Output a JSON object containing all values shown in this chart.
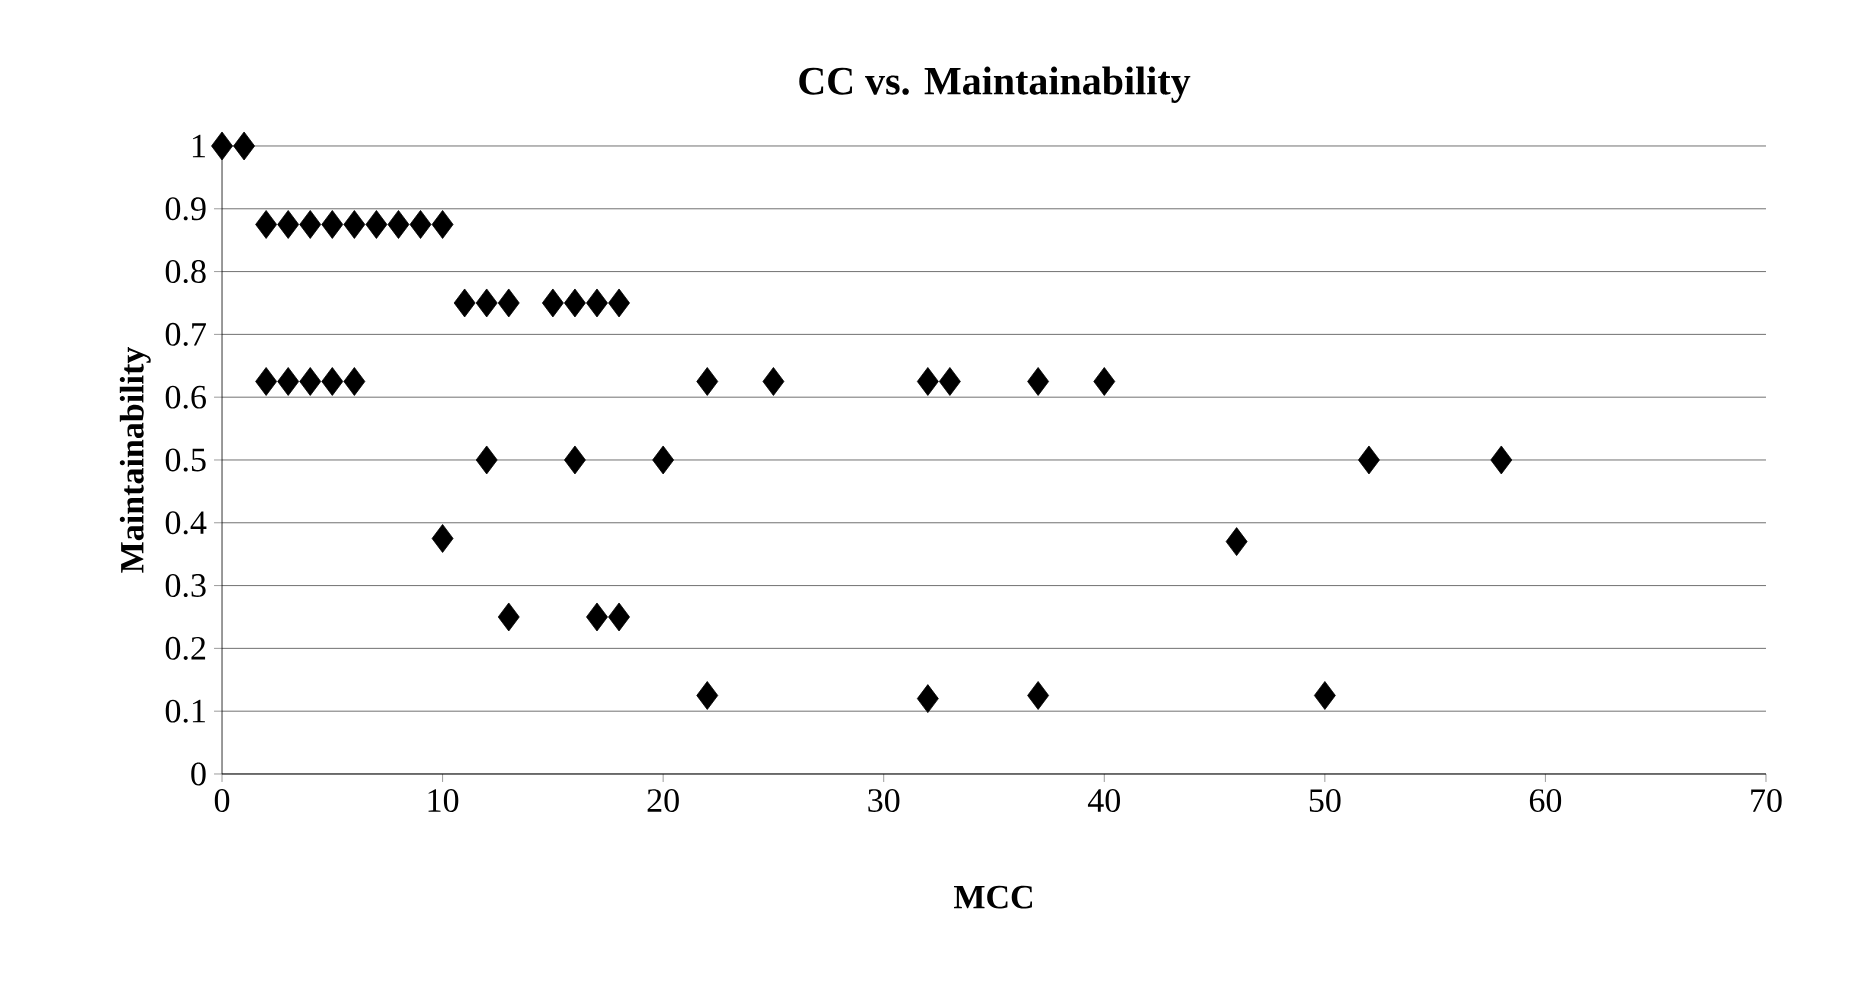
{
  "chart_data": {
    "type": "scatter",
    "title": "CC vs. Maintainability",
    "xlabel": "MCC",
    "ylabel": "Maintainability",
    "series": [
      {
        "color": "#000000",
        "x": [
          0,
          1,
          2,
          3,
          4,
          5,
          6,
          7,
          8,
          9,
          10,
          11,
          12,
          13,
          15,
          16,
          17,
          18,
          2,
          3,
          4,
          5,
          6,
          22,
          25,
          32,
          33,
          37,
          40,
          12,
          16,
          20,
          52,
          58,
          10,
          46,
          13,
          17,
          18,
          22,
          32,
          37,
          50
        ],
        "values": [
          1,
          1,
          0.875,
          0.875,
          0.875,
          0.875,
          0.875,
          0.875,
          0.875,
          0.875,
          0.875,
          0.75,
          0.75,
          0.75,
          0.75,
          0.75,
          0.75,
          0.75,
          0.625,
          0.625,
          0.625,
          0.625,
          0.625,
          0.625,
          0.625,
          0.625,
          0.625,
          0.625,
          0.625,
          0.5,
          0.5,
          0.5,
          0.5,
          0.5,
          0.375,
          0.37,
          0.25,
          0.25,
          0.25,
          0.125,
          0.12,
          0.125,
          0.125
        ]
      }
    ],
    "xlim": [
      0,
      70
    ],
    "xticks": [
      0,
      10,
      20,
      30,
      40,
      50,
      60,
      70
    ],
    "ylim": [
      0,
      1
    ],
    "yticks": [
      0,
      0.1,
      0.2,
      0.3,
      0.4,
      0.5,
      0.6,
      0.7,
      0.8,
      0.9,
      1
    ],
    "grid": "y",
    "marker": "diamond"
  }
}
